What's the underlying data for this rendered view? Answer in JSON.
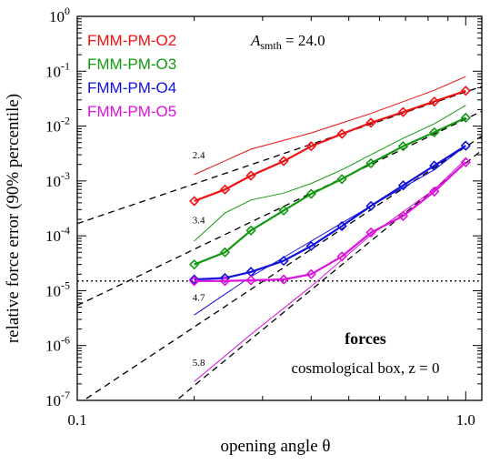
{
  "chart_data": {
    "type": "line",
    "xlabel": "opening angle  θ",
    "ylabel": "relative force error (90% percentile)",
    "xscale": "log",
    "yscale": "log",
    "xlim": [
      0.1,
      1.1
    ],
    "ylim": [
      1e-07,
      1
    ],
    "x_ticks": [
      {
        "value": 0.1,
        "label": "0.1"
      },
      {
        "value": 1.0,
        "label": "1.0"
      }
    ],
    "y_ticks": [
      {
        "value": 1e-07,
        "mantissa": "10",
        "exp": "-7"
      },
      {
        "value": 1e-06,
        "mantissa": "10",
        "exp": "-6"
      },
      {
        "value": 1e-05,
        "mantissa": "10",
        "exp": "-5"
      },
      {
        "value": 0.0001,
        "mantissa": "10",
        "exp": "-4"
      },
      {
        "value": 0.001,
        "mantissa": "10",
        "exp": "-3"
      },
      {
        "value": 0.01,
        "mantissa": "10",
        "exp": "-2"
      },
      {
        "value": 0.1,
        "mantissa": "10",
        "exp": "-1"
      },
      {
        "value": 1,
        "mantissa": "10",
        "exp": "0"
      }
    ],
    "legend_position": "top-left",
    "series": [
      {
        "name": "FMM-PM-O2",
        "color": "#ee1111",
        "x": [
          0.2,
          0.24,
          0.28,
          0.34,
          0.4,
          0.48,
          0.57,
          0.69,
          0.83,
          1.0
        ],
        "y": [
          0.00043,
          0.0007,
          0.00125,
          0.0023,
          0.0043,
          0.0072,
          0.0115,
          0.018,
          0.028,
          0.044
        ],
        "reference_x": [
          0.2,
          0.28,
          0.4,
          0.57,
          0.83,
          1.0
        ],
        "reference_y": [
          0.0013,
          0.0038,
          0.0075,
          0.017,
          0.045,
          0.08
        ]
      },
      {
        "name": "FMM-PM-O3",
        "color": "#119911",
        "x": [
          0.2,
          0.24,
          0.28,
          0.34,
          0.4,
          0.48,
          0.57,
          0.69,
          0.83,
          1.0
        ],
        "y": [
          3e-05,
          5e-05,
          0.000125,
          0.00029,
          0.00058,
          0.00108,
          0.0021,
          0.0043,
          0.0077,
          0.0142
        ],
        "reference_x": [
          0.2,
          0.24,
          0.28,
          0.34,
          0.4,
          0.48,
          0.57,
          0.69,
          0.83,
          1.0
        ],
        "reference_y": [
          8e-05,
          0.00026,
          0.00045,
          0.0006,
          0.0009,
          0.0016,
          0.003,
          0.006,
          0.011,
          0.024
        ]
      },
      {
        "name": "FMM-PM-O4",
        "color": "#1111dd",
        "x": [
          0.2,
          0.24,
          0.28,
          0.34,
          0.4,
          0.48,
          0.57,
          0.69,
          0.83,
          1.0
        ],
        "y": [
          1.6e-05,
          1.7e-05,
          2.2e-05,
          3.5e-05,
          6.5e-05,
          0.00015,
          0.00035,
          0.00083,
          0.0019,
          0.0044
        ],
        "reference_x": [
          0.2,
          0.28,
          0.4,
          0.57,
          0.83,
          1.0
        ],
        "reference_y": [
          3.6e-06,
          1.8e-05,
          8e-05,
          0.00035,
          0.0016,
          0.0044
        ]
      },
      {
        "name": "FMM-PM-O5",
        "color": "#dd11dd",
        "x": [
          0.2,
          0.24,
          0.28,
          0.34,
          0.4,
          0.48,
          0.57,
          0.69,
          0.83,
          1.0
        ],
        "y": [
          1.5e-05,
          1.5e-05,
          1.55e-05,
          1.6e-05,
          2e-05,
          4.2e-05,
          0.000115,
          0.00023,
          0.00064,
          0.0022
        ],
        "reference_x": [
          0.2,
          0.28,
          0.4,
          0.57,
          0.83,
          1.0
        ],
        "reference_y": [
          2.2e-07,
          1.6e-06,
          1.2e-05,
          0.000104,
          0.0007,
          0.0025
        ]
      }
    ],
    "power_law_guides": [
      {
        "slope_label": "2.4",
        "exponent": 2.4,
        "y_at_1": 0.042
      },
      {
        "slope_label": "3.4",
        "exponent": 3.4,
        "y_at_1": 0.0135
      },
      {
        "slope_label": "4.7",
        "exponent": 4.7,
        "y_at_1": 0.0042
      },
      {
        "slope_label": "5.8",
        "exponent": 5.8,
        "y_at_1": 0.0021
      }
    ],
    "horizontal_reference": 1.5e-05,
    "annotations": {
      "asmth_symbol": "A",
      "asmth_sub": "smth",
      "asmth_value": " = 24.0",
      "title": "forces",
      "subtitle": "cosmological box, z = 0"
    }
  }
}
